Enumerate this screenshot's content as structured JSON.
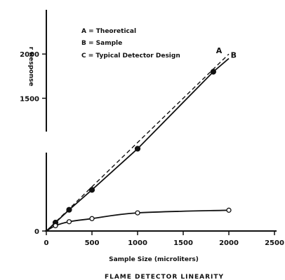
{
  "chart_data": {
    "type": "line",
    "title": "FLAME DETECTOR LINEARITY",
    "xlabel": "Sample Size (microliters)",
    "ylabel": "r Response",
    "xlim": [
      0,
      2500
    ],
    "ylim": [
      0,
      2500
    ],
    "x_ticks": [
      0,
      500,
      1000,
      1500,
      2000,
      2500
    ],
    "x_tick_labels": [
      "0",
      "500",
      "1000",
      "1500",
      "2000",
      "2500"
    ],
    "y_ticks": [
      0,
      1500,
      2000
    ],
    "y_tick_labels": [
      "0",
      "1500",
      "2000"
    ],
    "grid": false,
    "legend": {
      "placement": "top-left",
      "entries": [
        "A = Theoretical",
        "B = Sample",
        "C = Typical Detector Design"
      ]
    },
    "series": [
      {
        "name": "A",
        "style": "dashed",
        "points": [
          [
            0,
            0
          ],
          [
            2000,
            2000
          ]
        ]
      },
      {
        "name": "B",
        "style": "solid-filled-points",
        "points": [
          [
            0,
            0
          ],
          [
            100,
            95
          ],
          [
            250,
            240
          ],
          [
            500,
            465
          ],
          [
            1000,
            930
          ],
          [
            1830,
            1800
          ],
          [
            2000,
            1950
          ]
        ]
      },
      {
        "name": "C",
        "style": "solid-open-points",
        "points": [
          [
            0,
            0
          ],
          [
            100,
            60
          ],
          [
            250,
            105
          ],
          [
            500,
            140
          ],
          [
            1000,
            205
          ],
          [
            2000,
            235
          ]
        ]
      }
    ],
    "curve_labels": [
      {
        "text": "A",
        "x": 1860,
        "y": 2010
      },
      {
        "text": "B",
        "x": 2020,
        "y": 1960
      }
    ]
  }
}
